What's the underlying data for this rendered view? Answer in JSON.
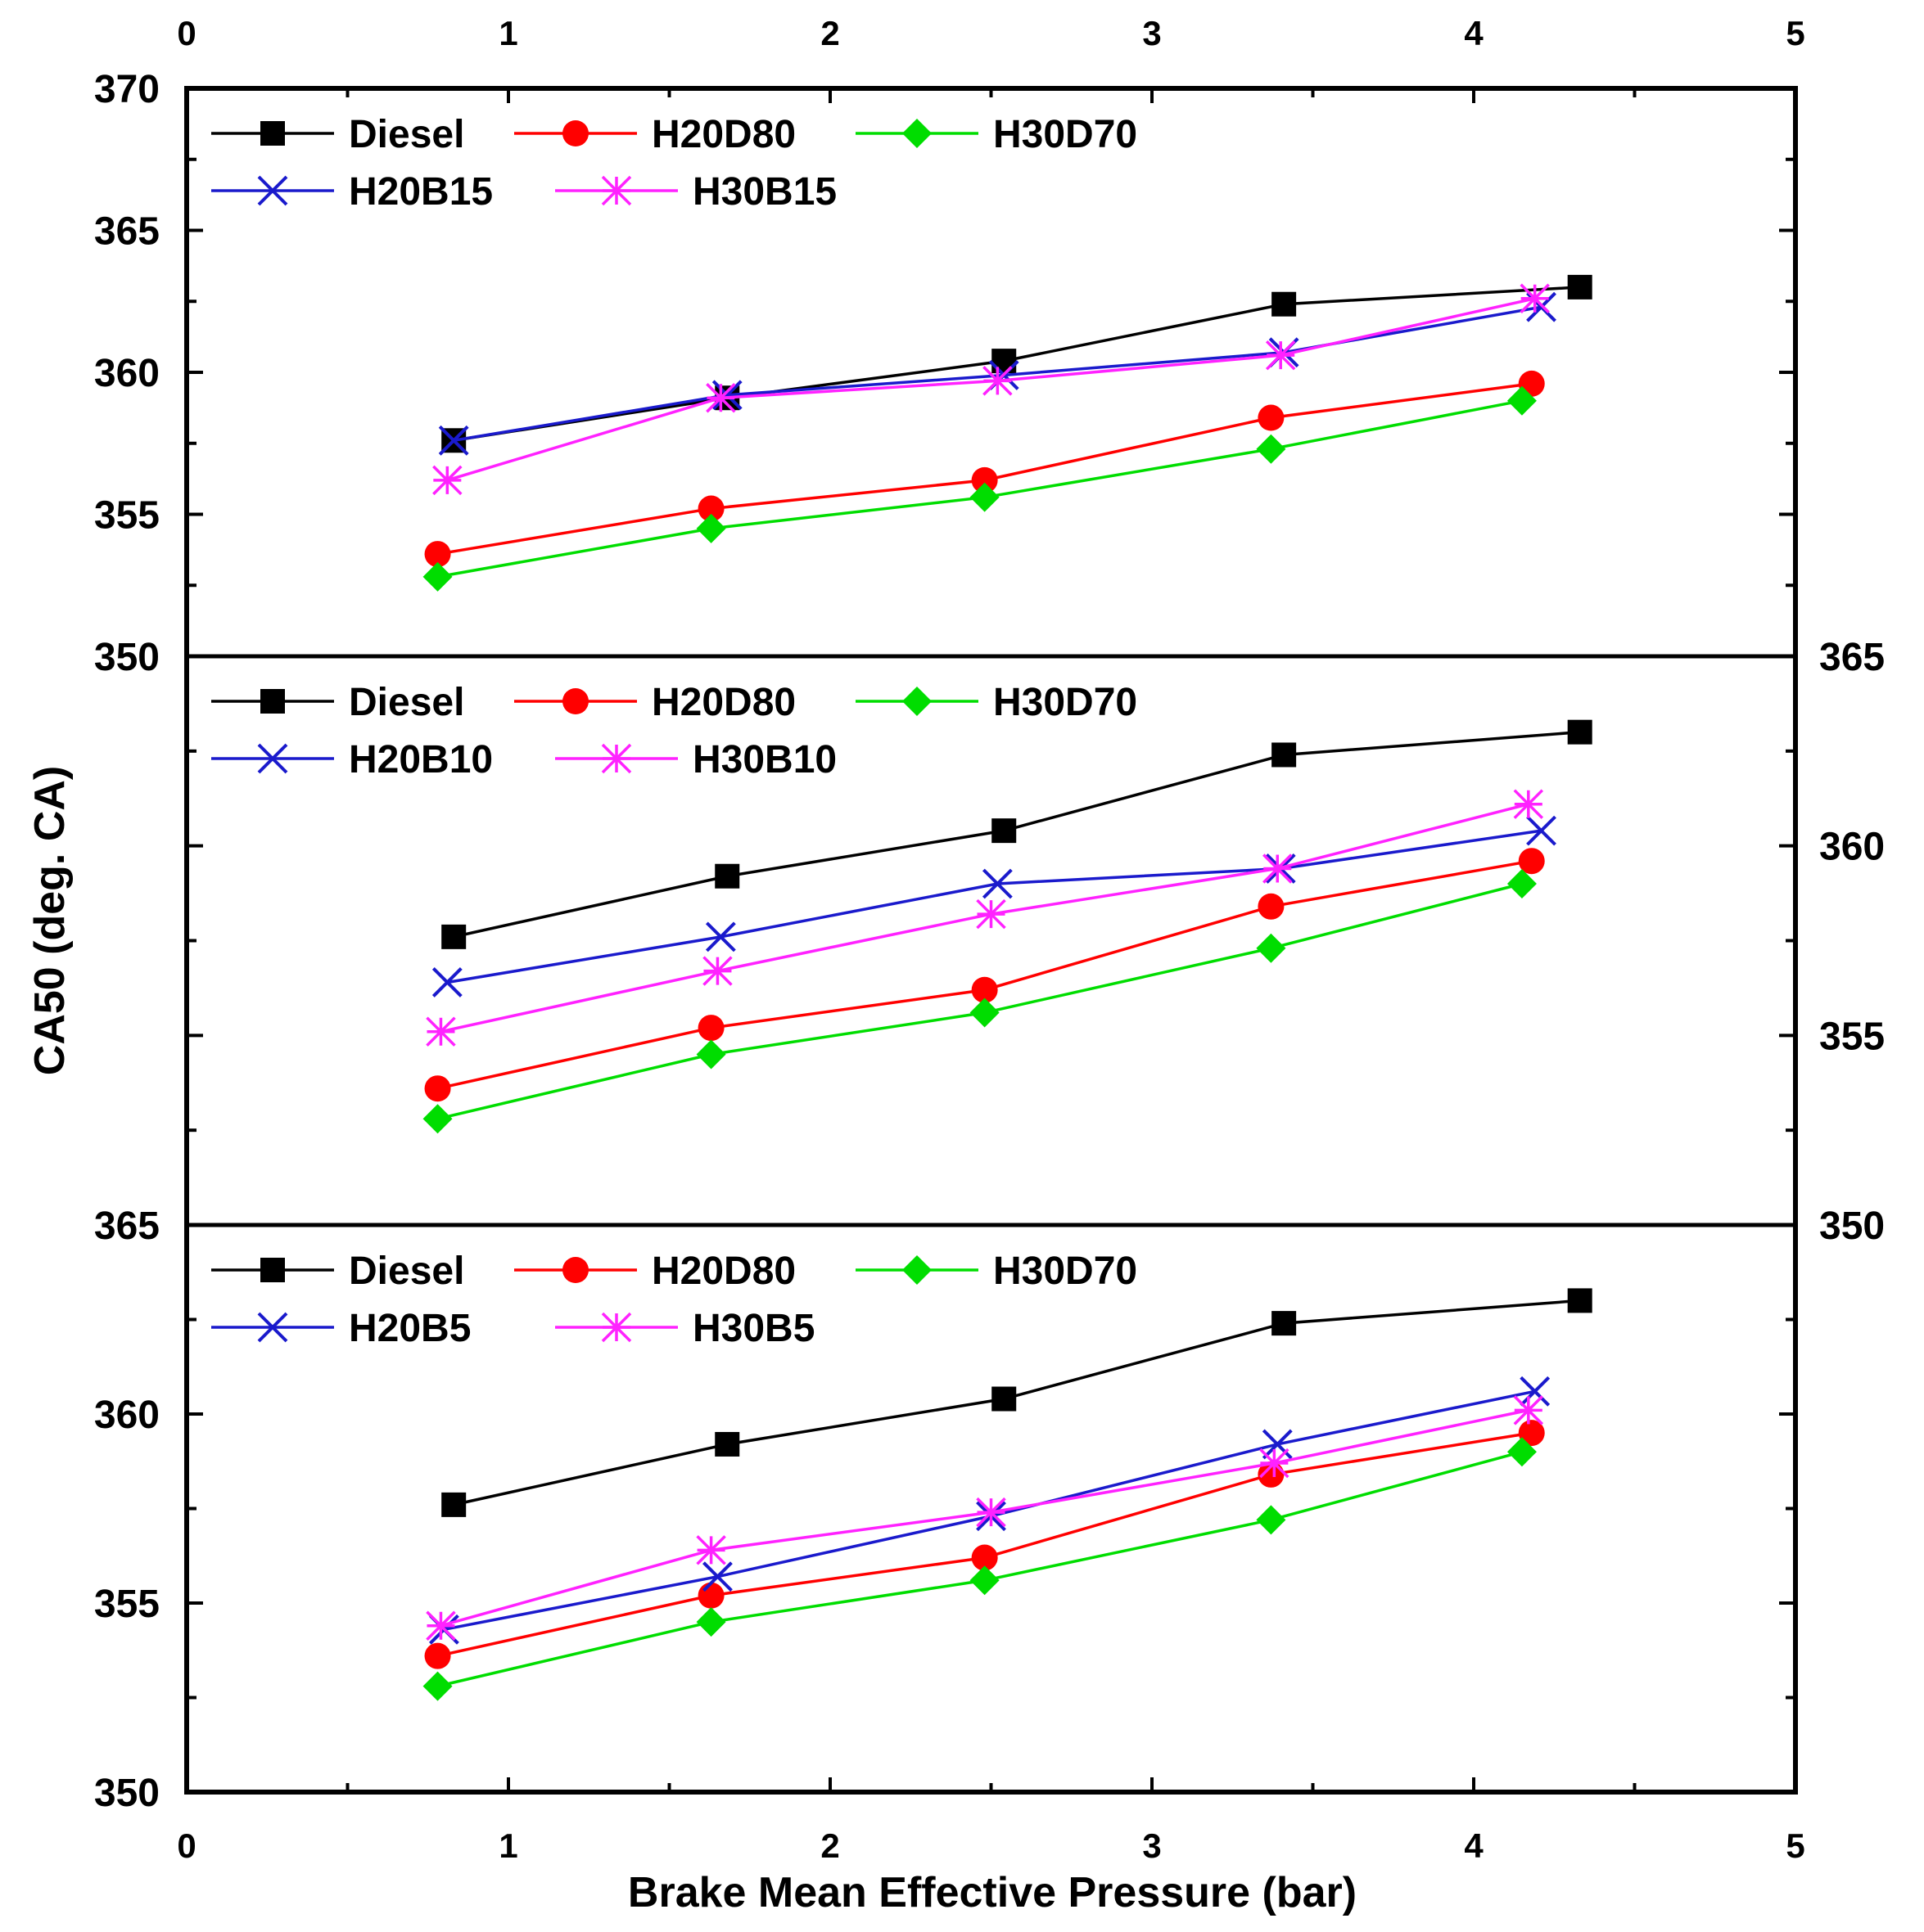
{
  "chart_data": {
    "type": "line",
    "xlabel": "Brake Mean Effective Pressure (bar)",
    "ylabel": "CA50 (deg. CA)",
    "xlim": [
      0,
      5
    ],
    "x_ticks": [
      "0",
      "1",
      "2",
      "3",
      "4",
      "5"
    ],
    "colors": {
      "Diesel": "#000000",
      "H20D80": "#ff0000",
      "H30D70": "#00dd00",
      "H20B": "#1a1acc",
      "H30B": "#ff22ff"
    },
    "panels": [
      {
        "name": "B15",
        "ylim": [
          350,
          370
        ],
        "y_ticks": [
          "350",
          "355",
          "360",
          "365",
          "370"
        ],
        "y_axis_side": "left",
        "series": [
          {
            "name": "Diesel",
            "marker": "square",
            "x": [
              0.83,
              1.68,
              2.54,
              3.41,
              4.33
            ],
            "y": [
              357.6,
              359.1,
              360.4,
              362.4,
              363.0
            ]
          },
          {
            "name": "H20D80",
            "marker": "circle",
            "x": [
              0.78,
              1.63,
              2.48,
              3.37,
              4.18
            ],
            "y": [
              353.6,
              355.2,
              356.2,
              358.4,
              359.6
            ]
          },
          {
            "name": "H30D70",
            "marker": "diamond",
            "x": [
              0.78,
              1.63,
              2.48,
              3.37,
              4.15
            ],
            "y": [
              352.8,
              354.5,
              355.6,
              357.3,
              359.0
            ]
          },
          {
            "name": "H20B15",
            "marker": "x",
            "x": [
              0.83,
              1.68,
              2.54,
              3.41,
              4.21
            ],
            "y": [
              357.6,
              359.2,
              359.9,
              360.7,
              362.3
            ]
          },
          {
            "name": "H30B15",
            "marker": "star",
            "x": [
              0.81,
              1.66,
              2.52,
              3.4,
              4.19
            ],
            "y": [
              356.2,
              359.1,
              359.7,
              360.6,
              362.6
            ]
          }
        ]
      },
      {
        "name": "B10",
        "ylim": [
          350,
          365
        ],
        "y_ticks": [
          "350",
          "355",
          "360",
          "365"
        ],
        "y_axis_side": "right",
        "series": [
          {
            "name": "Diesel",
            "marker": "square",
            "x": [
              0.83,
              1.68,
              2.54,
              3.41,
              4.33
            ],
            "y": [
              357.6,
              359.2,
              360.4,
              362.4,
              363.0
            ]
          },
          {
            "name": "H20D80",
            "marker": "circle",
            "x": [
              0.78,
              1.63,
              2.48,
              3.37,
              4.18
            ],
            "y": [
              353.6,
              355.2,
              356.2,
              358.4,
              359.6
            ]
          },
          {
            "name": "H30D70",
            "marker": "diamond",
            "x": [
              0.78,
              1.63,
              2.48,
              3.37,
              4.15
            ],
            "y": [
              352.8,
              354.5,
              355.6,
              357.3,
              359.0
            ]
          },
          {
            "name": "H20B10",
            "marker": "x",
            "x": [
              0.81,
              1.66,
              2.52,
              3.4,
              4.21
            ],
            "y": [
              356.4,
              357.6,
              359.0,
              359.4,
              360.4
            ]
          },
          {
            "name": "H30B10",
            "marker": "star",
            "x": [
              0.79,
              1.65,
              2.5,
              3.39,
              4.17
            ],
            "y": [
              355.1,
              356.7,
              358.2,
              359.4,
              361.1
            ]
          }
        ]
      },
      {
        "name": "B5",
        "ylim": [
          350,
          365
        ],
        "y_ticks": [
          "350",
          "355",
          "360",
          "365"
        ],
        "y_axis_side": "left",
        "series": [
          {
            "name": "Diesel",
            "marker": "square",
            "x": [
              0.83,
              1.68,
              2.54,
              3.41,
              4.33
            ],
            "y": [
              357.6,
              359.2,
              360.4,
              362.4,
              363.0
            ]
          },
          {
            "name": "H20D80",
            "marker": "circle",
            "x": [
              0.78,
              1.63,
              2.48,
              3.37,
              4.18
            ],
            "y": [
              353.6,
              355.2,
              356.2,
              358.4,
              359.5
            ]
          },
          {
            "name": "H30D70",
            "marker": "diamond",
            "x": [
              0.78,
              1.63,
              2.48,
              3.37,
              4.15
            ],
            "y": [
              352.8,
              354.5,
              355.6,
              357.2,
              359.0
            ]
          },
          {
            "name": "H20B5",
            "marker": "x",
            "x": [
              0.8,
              1.65,
              2.5,
              3.39,
              4.19
            ],
            "y": [
              354.3,
              355.7,
              357.3,
              359.2,
              360.6
            ]
          },
          {
            "name": "H30B5",
            "marker": "star",
            "x": [
              0.79,
              1.63,
              2.5,
              3.38,
              4.17
            ],
            "y": [
              354.4,
              356.4,
              357.4,
              358.7,
              360.1
            ]
          }
        ]
      }
    ]
  }
}
